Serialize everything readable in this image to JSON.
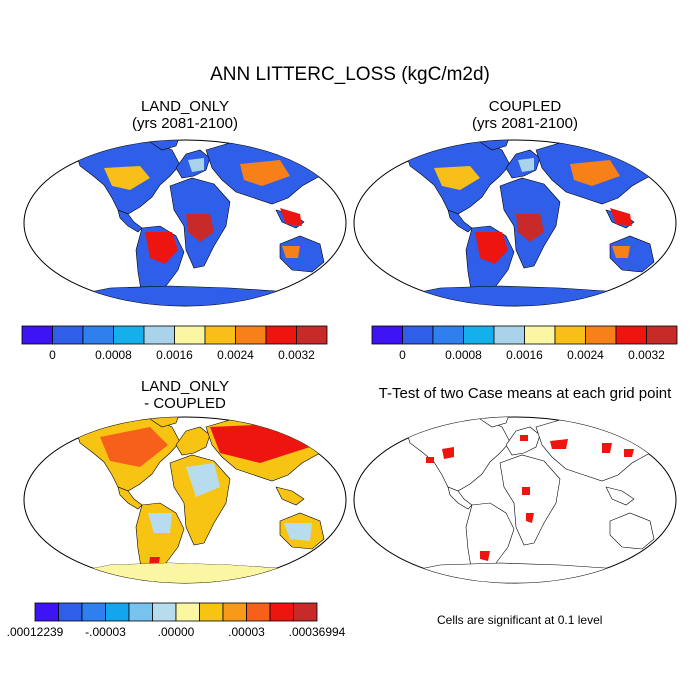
{
  "main_title": "ANN LITTERC_LOSS (kgC/m2d)",
  "panels": [
    {
      "title_line1": "LAND_ONLY",
      "title_line2": "(yrs 2081-2100)"
    },
    {
      "title_line1": "COUPLED",
      "title_line2": "(yrs 2081-2100)"
    },
    {
      "title_line1": "LAND_ONLY",
      "title_line2": "- COUPLED"
    },
    {
      "title_line1": "T-Test of two Case means at each grid point",
      "title_line2": ""
    }
  ],
  "colorbar_abs": {
    "colors": [
      "#3f14f4",
      "#2f5ee8",
      "#2f80ee",
      "#13b0ec",
      "#a8d3ea",
      "#fbf6a1",
      "#f8bf18",
      "#f78019",
      "#ee1410",
      "#c82a2a"
    ],
    "labels": [
      "0",
      "0.0008",
      "0.0016",
      "0.0024",
      "0.0032"
    ]
  },
  "colorbar_diff": {
    "colors": [
      "#3f14f4",
      "#2f5ee8",
      "#2f80ee",
      "#13a6ee",
      "#78c2ee",
      "#b6dcee",
      "#fbf6a1",
      "#f8c414",
      "#f79a19",
      "#f7601a",
      "#ee1410",
      "#c82a2a"
    ],
    "labels": [
      ".00012239",
      "-.00003",
      ".00000",
      ".00003",
      ".00036994"
    ]
  },
  "significance_note": "Cells are significant at 0.1 level"
}
